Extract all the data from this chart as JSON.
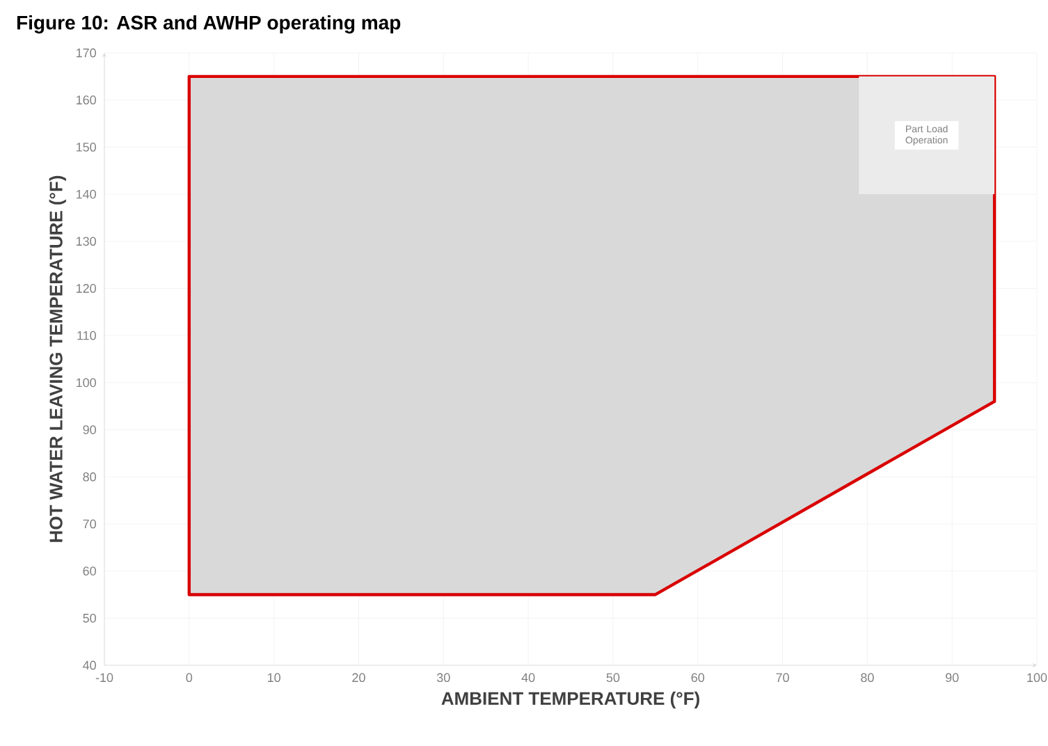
{
  "chart_data": {
    "type": "area",
    "title": "Figure 10: ASR and AWHP operating map",
    "xlabel": "AMBIENT TEMPERATURE (°F)",
    "ylabel": "HOT WATER LEAVING TEMPERATURE (°F)",
    "xlim": [
      -10,
      100
    ],
    "ylim": [
      40,
      170
    ],
    "xticks": [
      -10,
      0,
      10,
      20,
      30,
      40,
      50,
      60,
      70,
      80,
      90,
      100
    ],
    "yticks": [
      40,
      50,
      60,
      70,
      80,
      90,
      100,
      110,
      120,
      130,
      140,
      150,
      160,
      170
    ],
    "grid": true,
    "series": [
      {
        "x": [
          0,
          0,
          95,
          95,
          55,
          0
        ],
        "values": [
          55,
          165,
          165,
          96,
          55,
          55
        ],
        "color": "#d9d9d9"
      },
      {
        "name": "Part Load Operation",
        "x": [
          79,
          95,
          95,
          79,
          79
        ],
        "values": [
          140,
          140,
          165,
          165,
          140
        ],
        "color": "#ebebeb"
      }
    ]
  }
}
